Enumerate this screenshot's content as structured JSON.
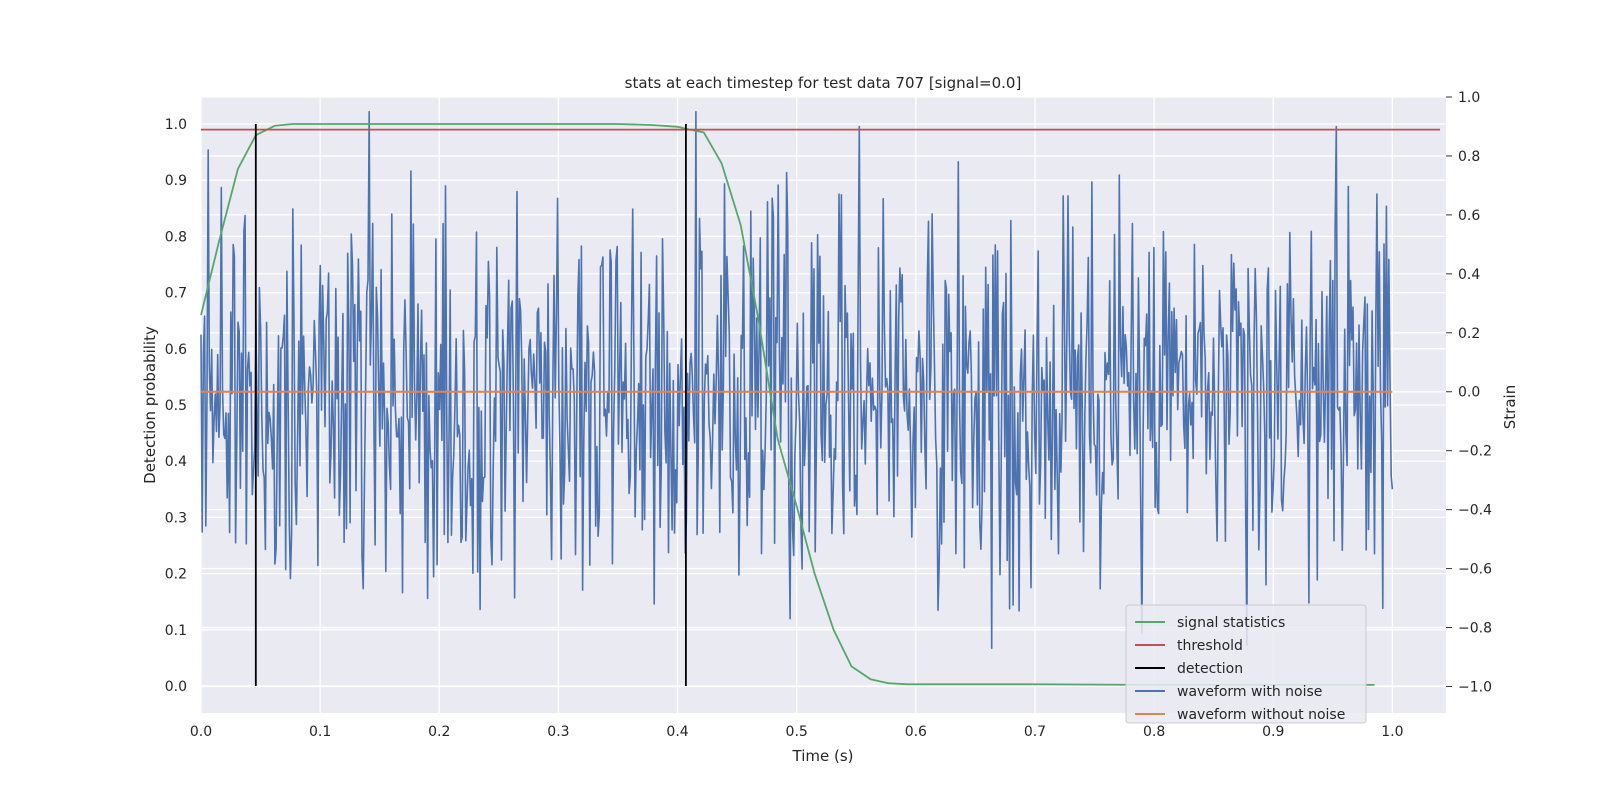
{
  "chart_data": {
    "type": "line",
    "title": "stats at each timestep for test data 707 [signal=0.0]",
    "xlabel": "Time (s)",
    "ylabel": "Detection probability",
    "y2label": "Strain",
    "xlim": [
      0.0,
      1.045
    ],
    "ylim": [
      -0.048,
      1.048
    ],
    "y2lim": [
      -1.09,
      1.0
    ],
    "x_ticks": [
      0.0,
      0.1,
      0.2,
      0.3,
      0.4,
      0.5,
      0.6,
      0.7,
      0.8,
      0.9,
      1.0
    ],
    "x_tick_labels": [
      "0.0",
      "0.1",
      "0.2",
      "0.3",
      "0.4",
      "0.5",
      "0.6",
      "0.7",
      "0.8",
      "0.9",
      "1.0"
    ],
    "y_ticks": [
      0.0,
      0.1,
      0.2,
      0.3,
      0.4,
      0.5,
      0.6,
      0.7,
      0.8,
      0.9,
      1.0
    ],
    "y_tick_labels": [
      "0.0",
      "0.1",
      "0.2",
      "0.3",
      "0.4",
      "0.5",
      "0.6",
      "0.7",
      "0.8",
      "0.9",
      "1.0"
    ],
    "y2_ticks": [
      -1.0,
      -0.8,
      -0.6,
      -0.4,
      -0.2,
      0.0,
      0.2,
      0.4,
      0.6,
      0.8,
      1.0
    ],
    "y2_tick_labels": [
      "−1.0",
      "−0.8",
      "−0.6",
      "−0.4",
      "−0.2",
      "0.0",
      "0.2",
      "0.4",
      "0.6",
      "0.8",
      "1.0"
    ],
    "grid": true,
    "legend_position": "bottom-right",
    "series": [
      {
        "name": "signal statistics",
        "axis": "left",
        "color": "#55a868",
        "x": [
          0.0,
          0.015,
          0.031,
          0.046,
          0.062,
          0.077,
          0.1,
          0.2,
          0.3,
          0.35,
          0.38,
          0.4,
          0.41,
          0.422,
          0.437,
          0.453,
          0.468,
          0.484,
          0.5,
          0.515,
          0.531,
          0.546,
          0.562,
          0.577,
          0.593,
          0.62,
          0.7,
          0.8,
          0.9,
          0.985
        ],
        "y": [
          0.66,
          0.79,
          0.92,
          0.98,
          0.997,
          1.0,
          1.0,
          1.0,
          1.0,
          1.0,
          0.998,
          0.995,
          0.99,
          0.985,
          0.93,
          0.82,
          0.65,
          0.44,
          0.32,
          0.2,
          0.1,
          0.035,
          0.012,
          0.005,
          0.003,
          0.003,
          0.003,
          0.002,
          0.002,
          0.002
        ]
      },
      {
        "name": "threshold",
        "axis": "left",
        "color": "#c44e52",
        "x": [
          0.0,
          1.04
        ],
        "y": [
          0.99,
          0.99
        ]
      },
      {
        "name": "detection",
        "axis": "left",
        "color": "#000000",
        "segments": [
          {
            "x": [
              0.046,
              0.046
            ],
            "y": [
              0.0,
              1.0
            ]
          },
          {
            "x": [
              0.407,
              0.407
            ],
            "y": [
              0.0,
              1.0
            ]
          }
        ]
      },
      {
        "name": "waveform with noise",
        "axis": "right",
        "color": "#4c72b0",
        "points": 1000,
        "x_range": [
          0.0,
          1.0
        ],
        "y_range_observed": [
          -0.92,
          0.95
        ],
        "peaks": [
          {
            "x": 0.006,
            "y": 0.82
          },
          {
            "x": 0.141,
            "y": 0.95
          },
          {
            "x": 0.415,
            "y": 0.95
          },
          {
            "x": 0.553,
            "y": 0.9
          },
          {
            "x": 0.636,
            "y": 0.78
          },
          {
            "x": 0.953,
            "y": 0.9
          },
          {
            "x": 0.664,
            "y": -0.87
          },
          {
            "x": 0.494,
            "y": -0.77
          },
          {
            "x": 0.38,
            "y": -0.72
          },
          {
            "x": 0.79,
            "y": -0.82
          },
          {
            "x": 0.878,
            "y": -0.86
          }
        ]
      },
      {
        "name": "waveform without noise",
        "axis": "right",
        "color": "#dd8452",
        "x": [
          0.0,
          1.0
        ],
        "y": [
          0.0,
          0.0
        ]
      }
    ]
  }
}
